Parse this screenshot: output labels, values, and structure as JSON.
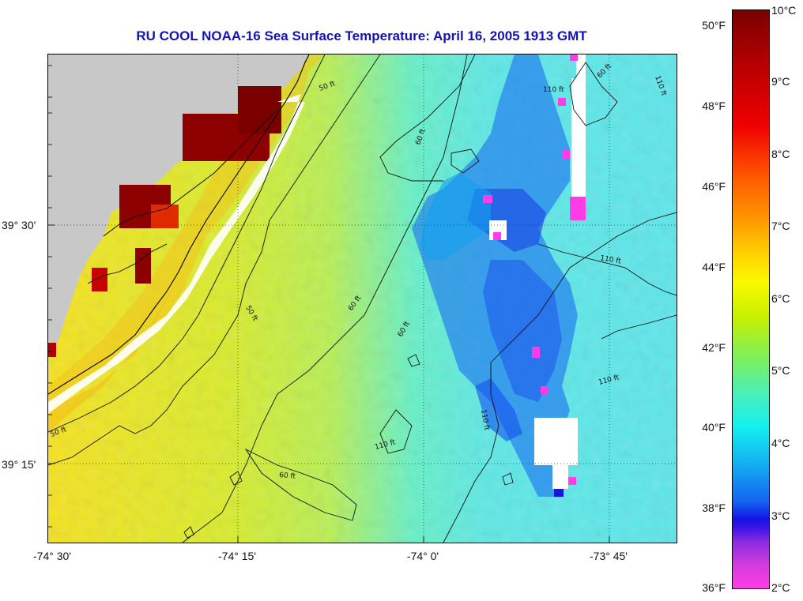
{
  "title": "RU COOL  NOAA-16  Sea Surface Temperature:  April 16, 2005 1913 GMT",
  "map": {
    "longitude_labels": [
      "-74° 30'",
      "-74° 15'",
      "-74° 0'",
      "-73° 45'"
    ],
    "latitude_labels": [
      "39° 30'",
      "39° 15'"
    ],
    "contour_labels": [
      "50 ft",
      "50 ft",
      "50 ft",
      "60 ft",
      "60 ft",
      "60 ft",
      "60 ft",
      "110 ft",
      "110 ft",
      "110 ft",
      "110 ft",
      "110 ft",
      "110 ft",
      "60 ft"
    ],
    "land_color": "#c8c8c8",
    "cloud_color": "#ffffff"
  },
  "colorbar": {
    "fahrenheit_labels": [
      "50°F",
      "48°F",
      "46°F",
      "44°F",
      "42°F",
      "40°F",
      "38°F",
      "36°F"
    ],
    "celsius_labels": [
      "10°C",
      "9°C",
      "8°C",
      "7°C",
      "6°C",
      "5°C",
      "4°C",
      "3°C",
      "2°C"
    ]
  }
}
